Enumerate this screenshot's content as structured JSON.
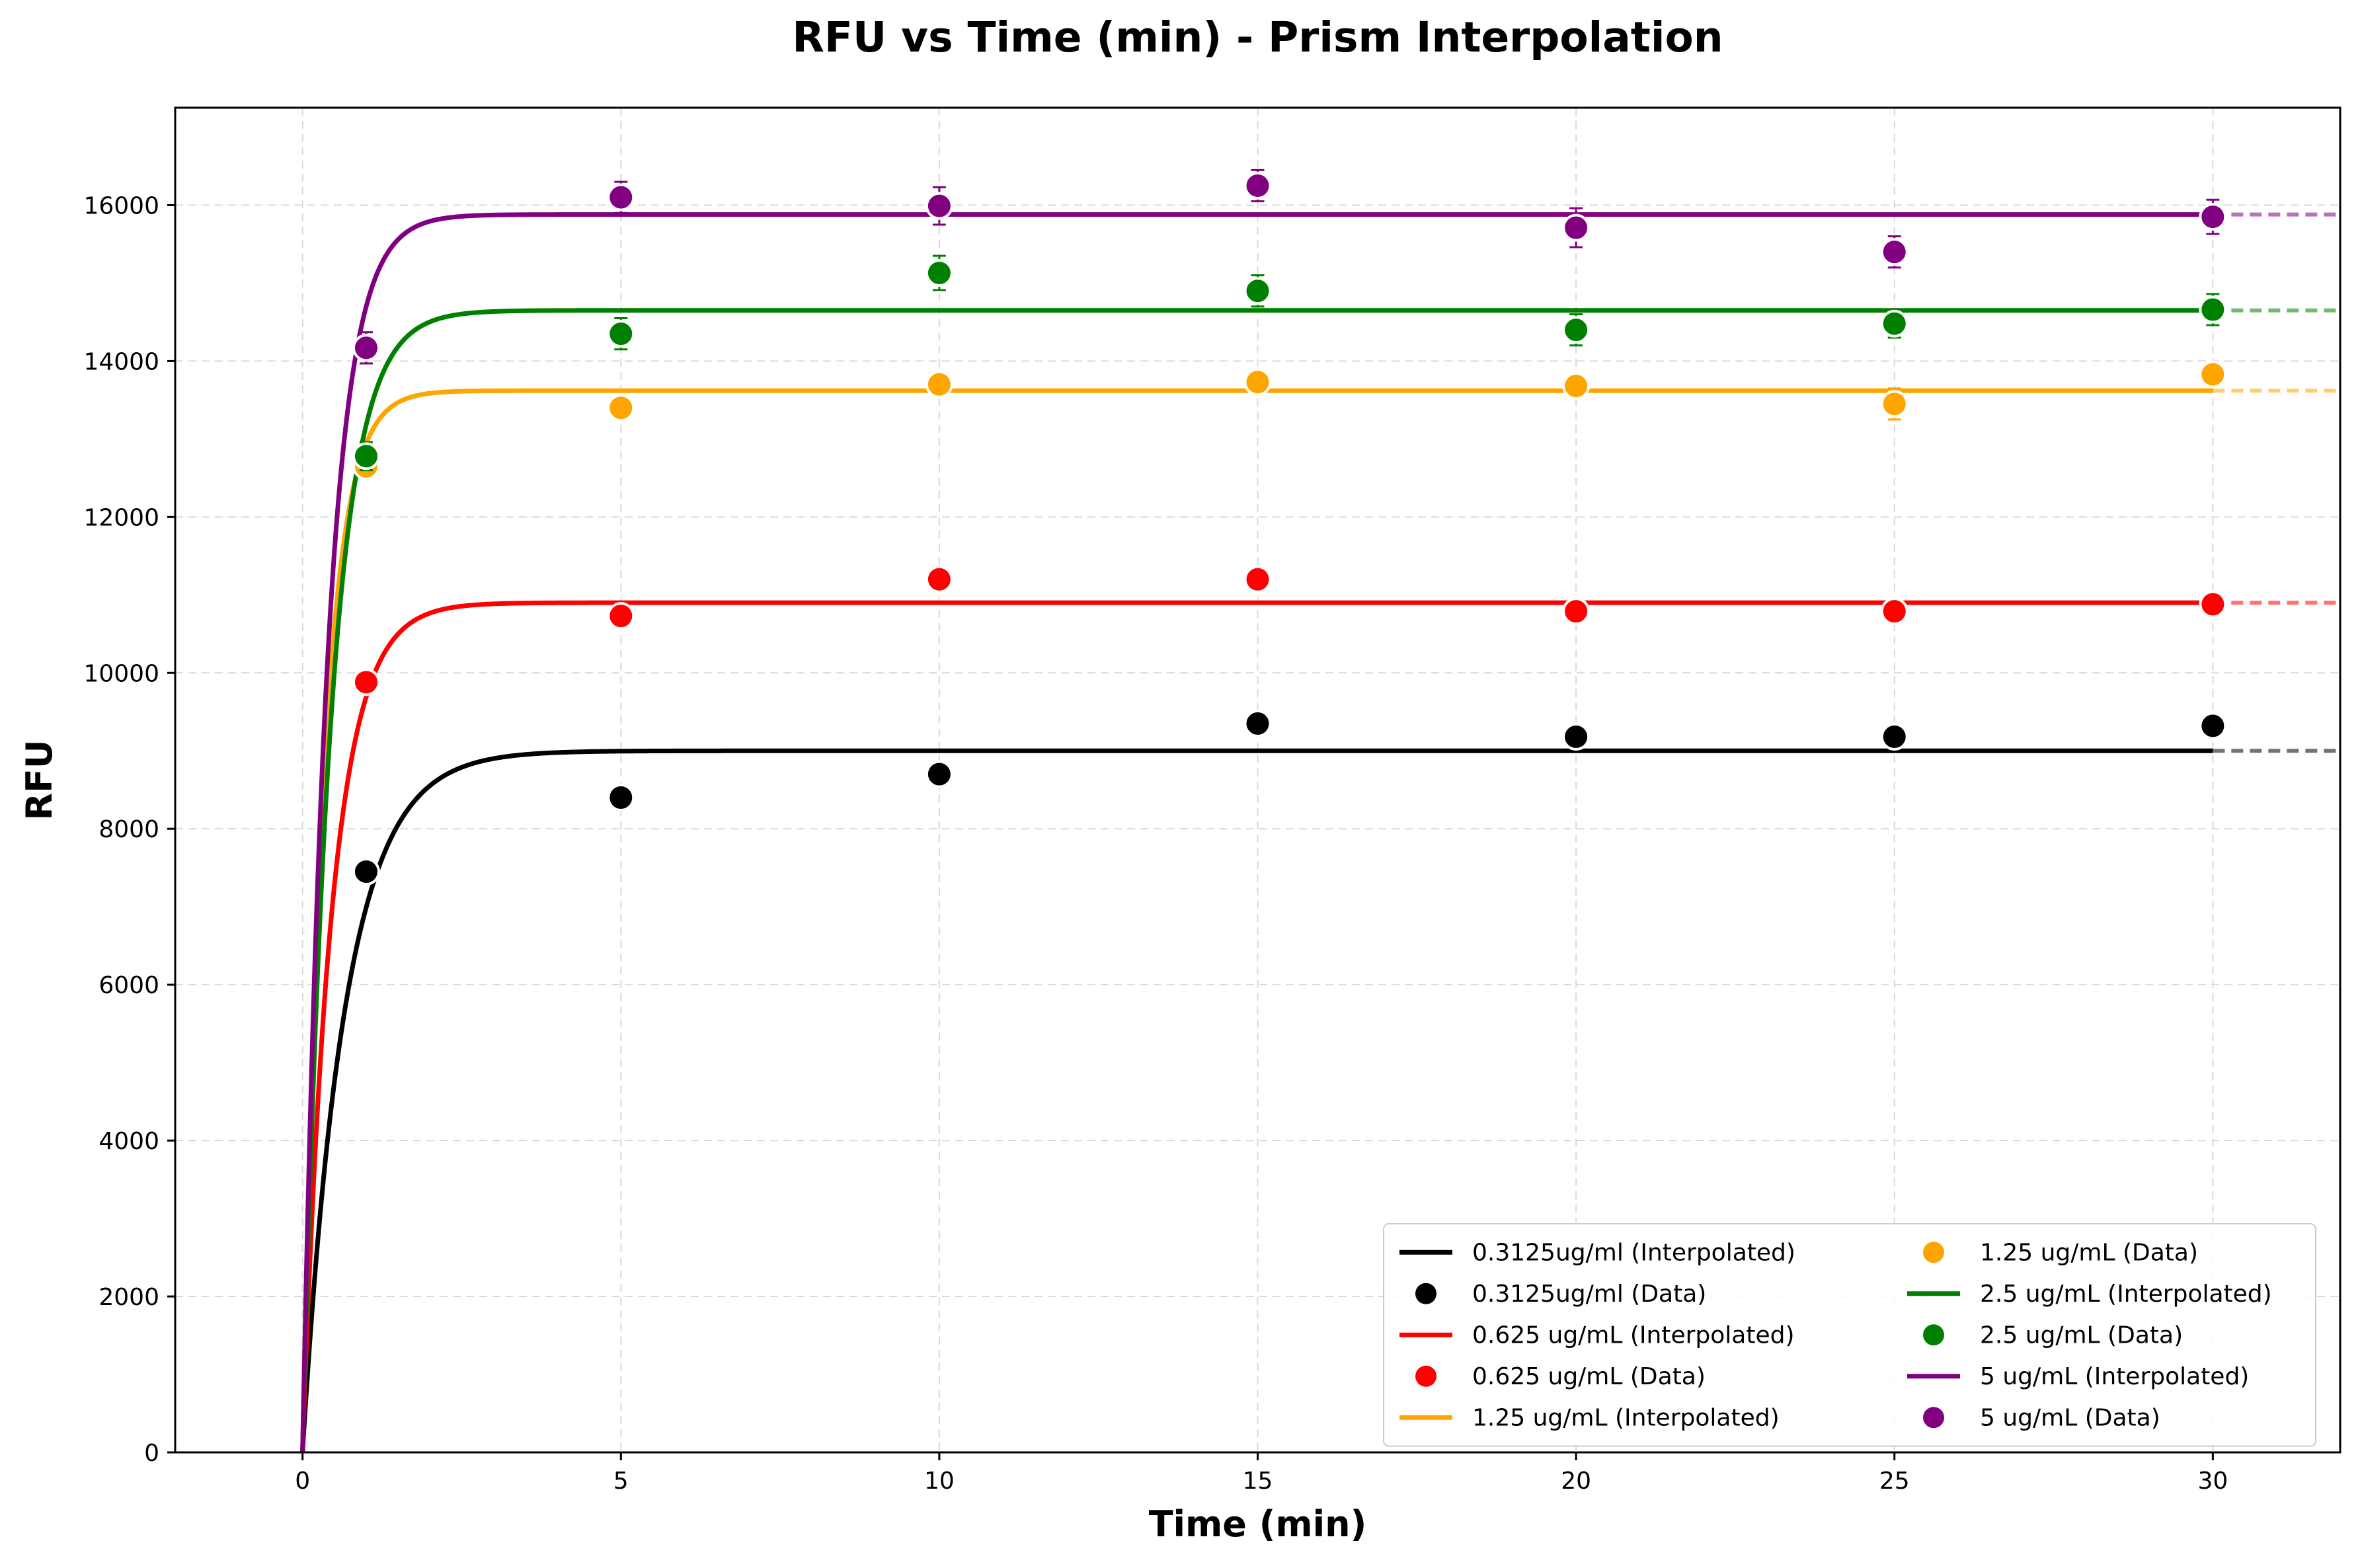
{
  "chart_data": {
    "type": "scatter",
    "title": "RFU vs Time (min) - Prism Interpolation",
    "xlabel": "Time (min)",
    "ylabel": "RFU",
    "xlim": [
      -2,
      32
    ],
    "ylim": [
      0,
      17250
    ],
    "xticks": [
      0,
      5,
      10,
      15,
      20,
      25,
      30
    ],
    "yticks": [
      0,
      2000,
      4000,
      6000,
      8000,
      10000,
      12000,
      14000,
      16000
    ],
    "grid": true,
    "legend_position": "lower-right",
    "legend_columns": 2,
    "x": [
      1,
      5,
      10,
      15,
      20,
      25,
      30
    ],
    "series": [
      {
        "color": "#000000",
        "line_label": "0.3125ug/ml (Interpolated)",
        "data_label": "0.3125ug/ml (Data)",
        "plateau": 9000,
        "rate": 1.5,
        "values": [
          7450,
          8400,
          8700,
          9350,
          9180,
          9180,
          9320
        ],
        "errors": [
          0,
          0,
          0,
          0,
          0,
          0,
          0
        ]
      },
      {
        "color": "#ff0000",
        "line_label": "0.625 ug/mL (Interpolated)",
        "data_label": "0.625 ug/mL (Data)",
        "plateau": 10900,
        "rate": 2.2,
        "values": [
          9880,
          10730,
          11200,
          11200,
          10790,
          10790,
          10880
        ],
        "errors": [
          0,
          0,
          0,
          0,
          0,
          0,
          0
        ]
      },
      {
        "color": "#ffa500",
        "line_label": "1.25 ug/mL (Interpolated)",
        "data_label": "1.25 ug/mL (Data)",
        "plateau": 13620,
        "rate": 3.0,
        "values": [
          12650,
          13400,
          13700,
          13730,
          13680,
          13450,
          13830
        ],
        "errors": [
          0,
          0,
          0,
          0,
          0,
          200,
          0
        ]
      },
      {
        "color": "#008000",
        "line_label": "2.5 ug/mL (Interpolated)",
        "data_label": "2.5 ug/mL (Data)",
        "plateau": 14650,
        "rate": 2.3,
        "values": [
          12780,
          14350,
          15130,
          14900,
          14400,
          14480,
          14660
        ],
        "errors": [
          180,
          200,
          220,
          200,
          200,
          180,
          200
        ]
      },
      {
        "color": "#800080",
        "line_label": "5 ug/mL (Interpolated)",
        "data_label": "5 ug/mL (Data)",
        "plateau": 15880,
        "rate": 2.6,
        "values": [
          14170,
          16100,
          15990,
          16250,
          15710,
          15400,
          15850
        ],
        "errors": [
          200,
          200,
          240,
          200,
          250,
          200,
          220
        ]
      }
    ]
  }
}
